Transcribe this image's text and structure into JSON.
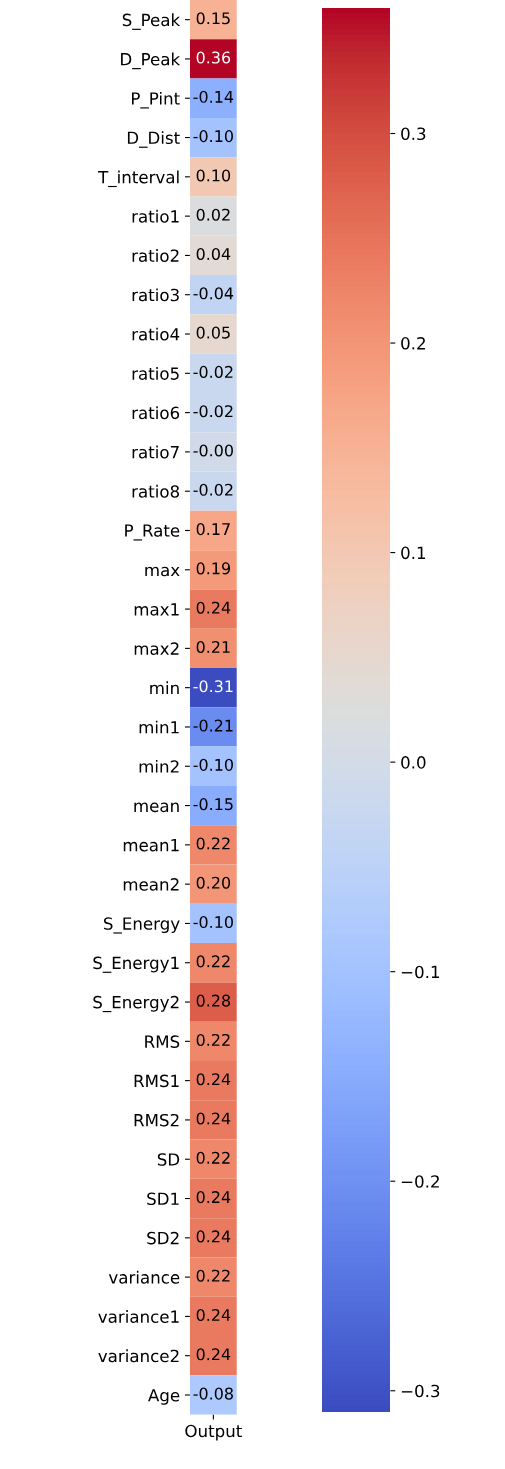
{
  "chart_data": {
    "type": "heatmap",
    "categories": [
      "Output"
    ],
    "y_categories": [
      "S_Peak",
      "D_Peak",
      "P_Pint",
      "D_Dist",
      "T_interval",
      "ratio1",
      "ratio2",
      "ratio3",
      "ratio4",
      "ratio5",
      "ratio6",
      "ratio7",
      "ratio8",
      "P_Rate",
      "max",
      "max1",
      "max2",
      "min",
      "min1",
      "min2",
      "mean",
      "mean1",
      "mean2",
      "S_Energy",
      "S_Energy1",
      "S_Energy2",
      "RMS",
      "RMS1",
      "RMS2",
      "SD",
      "SD1",
      "SD2",
      "variance",
      "variance1",
      "variance2",
      "Age"
    ],
    "cells": [
      [
        0.15
      ],
      [
        0.36
      ],
      [
        -0.14
      ],
      [
        -0.1
      ],
      [
        0.1
      ],
      [
        0.02
      ],
      [
        0.04
      ],
      [
        -0.04
      ],
      [
        0.05
      ],
      [
        -0.02
      ],
      [
        -0.02
      ],
      [
        -0.004
      ],
      [
        -0.02
      ],
      [
        0.17
      ],
      [
        0.19
      ],
      [
        0.24
      ],
      [
        0.21
      ],
      [
        -0.31
      ],
      [
        -0.21
      ],
      [
        -0.1
      ],
      [
        -0.15
      ],
      [
        0.22
      ],
      [
        0.2
      ],
      [
        -0.1
      ],
      [
        0.22
      ],
      [
        0.28
      ],
      [
        0.22
      ],
      [
        0.24
      ],
      [
        0.24
      ],
      [
        0.22
      ],
      [
        0.24
      ],
      [
        0.24
      ],
      [
        0.22
      ],
      [
        0.24
      ],
      [
        0.24
      ],
      [
        -0.08
      ]
    ],
    "cell_labels": [
      [
        "0.15"
      ],
      [
        "0.36"
      ],
      [
        "-0.14"
      ],
      [
        "-0.10"
      ],
      [
        "0.10"
      ],
      [
        "0.02"
      ],
      [
        "0.04"
      ],
      [
        "-0.04"
      ],
      [
        "0.05"
      ],
      [
        "-0.02"
      ],
      [
        "-0.02"
      ],
      [
        "-0.00"
      ],
      [
        "-0.02"
      ],
      [
        "0.17"
      ],
      [
        "0.19"
      ],
      [
        "0.24"
      ],
      [
        "0.21"
      ],
      [
        "-0.31"
      ],
      [
        "-0.21"
      ],
      [
        "-0.10"
      ],
      [
        "-0.15"
      ],
      [
        "0.22"
      ],
      [
        "0.20"
      ],
      [
        "-0.10"
      ],
      [
        "0.22"
      ],
      [
        "0.28"
      ],
      [
        "0.22"
      ],
      [
        "0.24"
      ],
      [
        "0.24"
      ],
      [
        "0.22"
      ],
      [
        "0.24"
      ],
      [
        "0.24"
      ],
      [
        "0.22"
      ],
      [
        "0.24"
      ],
      [
        "0.24"
      ],
      [
        "-0.08"
      ]
    ],
    "clim": [
      -0.31,
      0.36
    ],
    "cticks": [
      {
        "value": -0.3,
        "label": "−0.3"
      },
      {
        "value": -0.2,
        "label": "−0.2"
      },
      {
        "value": -0.1,
        "label": "−0.1"
      },
      {
        "value": 0,
        "label": "0.0"
      },
      0.1,
      0.2,
      0.3
    ]
  }
}
